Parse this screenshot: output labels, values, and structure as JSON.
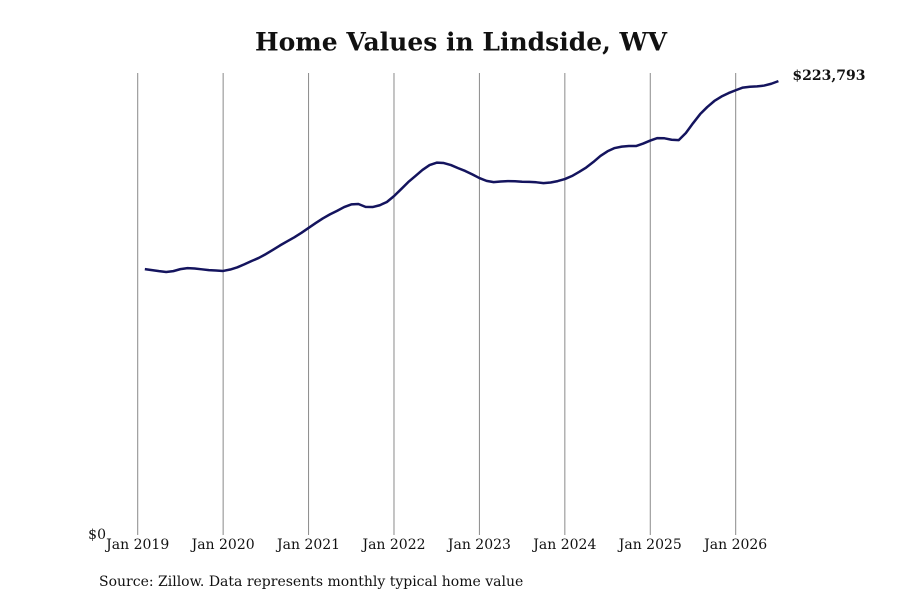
{
  "chart_data": {
    "type": "line",
    "title": "Home Values in Lindside, WV",
    "source": "Source: Zillow. Data represents monthly typical home value",
    "color": "#14145e",
    "grid": true,
    "x": [
      "2019-02",
      "2019-03",
      "2019-04",
      "2019-05",
      "2019-06",
      "2019-07",
      "2019-08",
      "2019-09",
      "2019-10",
      "2019-11",
      "2019-12",
      "2020-01",
      "2020-02",
      "2020-03",
      "2020-04",
      "2020-05",
      "2020-06",
      "2020-07",
      "2020-08",
      "2020-09",
      "2020-10",
      "2020-11",
      "2020-12",
      "2021-01",
      "2021-02",
      "2021-03",
      "2021-04",
      "2021-05",
      "2021-06",
      "2021-07",
      "2021-08",
      "2021-09",
      "2021-10",
      "2021-11",
      "2021-12",
      "2022-01",
      "2022-02",
      "2022-03",
      "2022-04",
      "2022-05",
      "2022-06",
      "2022-07",
      "2022-08",
      "2022-09",
      "2022-10",
      "2022-11",
      "2022-12",
      "2023-01",
      "2023-02",
      "2023-03",
      "2023-04",
      "2023-05",
      "2023-06",
      "2023-07",
      "2023-08",
      "2023-09",
      "2023-10",
      "2023-11",
      "2023-12",
      "2024-01",
      "2024-02",
      "2024-03",
      "2024-04",
      "2024-05",
      "2024-06",
      "2024-07",
      "2024-08",
      "2024-09",
      "2024-10",
      "2024-11",
      "2024-12",
      "2025-01",
      "2025-02",
      "2025-03",
      "2025-04",
      "2025-05",
      "2025-06",
      "2025-07",
      "2025-08",
      "2025-09",
      "2025-10",
      "2025-11",
      "2025-12",
      "2026-01",
      "2026-02",
      "2026-03",
      "2026-04",
      "2026-05",
      "2026-06",
      "2026-07"
    ],
    "values": [
      131100,
      130600,
      130100,
      129700,
      130100,
      131100,
      131600,
      131400,
      131000,
      130600,
      130400,
      130200,
      130900,
      132000,
      133500,
      135100,
      136600,
      138500,
      140600,
      142800,
      144800,
      146800,
      149000,
      151400,
      153800,
      156100,
      158100,
      159800,
      161700,
      163000,
      163200,
      161800,
      161700,
      162600,
      164200,
      167100,
      170500,
      174000,
      177000,
      180000,
      182400,
      183600,
      183400,
      182400,
      180900,
      179500,
      177800,
      176000,
      174600,
      174000,
      174300,
      174500,
      174400,
      174200,
      174100,
      173900,
      173500,
      173800,
      174500,
      175500,
      177000,
      179000,
      181200,
      183900,
      186900,
      189200,
      190800,
      191500,
      191800,
      191800,
      193000,
      194500,
      195700,
      195600,
      194900,
      194700,
      198200,
      203000,
      207500,
      211000,
      214000,
      216200,
      217900,
      219300,
      220600,
      221000,
      221200,
      221600,
      222500,
      223793
    ],
    "value_labels": [
      null,
      null,
      null,
      null,
      null,
      null,
      null,
      null,
      null,
      null,
      null,
      null,
      null,
      null,
      null,
      null,
      null,
      null,
      null,
      null,
      null,
      null,
      null,
      null,
      null,
      null,
      null,
      null,
      null,
      null,
      null,
      null,
      null,
      null,
      null,
      null,
      null,
      null,
      null,
      null,
      null,
      null,
      null,
      null,
      null,
      null,
      null,
      null,
      null,
      null,
      null,
      null,
      null,
      null,
      null,
      null,
      null,
      null,
      null,
      null,
      null,
      null,
      null,
      null,
      null,
      null,
      null,
      null,
      null,
      null,
      null,
      null,
      null,
      null,
      null,
      null,
      null,
      null,
      null,
      null,
      null,
      null,
      null,
      null,
      null,
      null,
      null,
      null,
      null,
      "$223,793"
    ],
    "xlim": [
      "2018-07",
      "2026-12"
    ],
    "xticks": [
      {
        "value": "2019-01",
        "label": "Jan 2019"
      },
      {
        "value": "2020-01",
        "label": "Jan 2020"
      },
      {
        "value": "2021-01",
        "label": "Jan 2021"
      },
      {
        "value": "2022-01",
        "label": "Jan 2022"
      },
      {
        "value": "2023-01",
        "label": "Jan 2023"
      },
      {
        "value": "2024-01",
        "label": "Jan 2024"
      },
      {
        "value": "2025-01",
        "label": "Jan 2025"
      },
      {
        "value": "2026-01",
        "label": "Jan 2026"
      }
    ],
    "ylim": [
      0,
      227800
    ],
    "yticks": [
      {
        "value": 0,
        "label": "$0"
      }
    ]
  }
}
